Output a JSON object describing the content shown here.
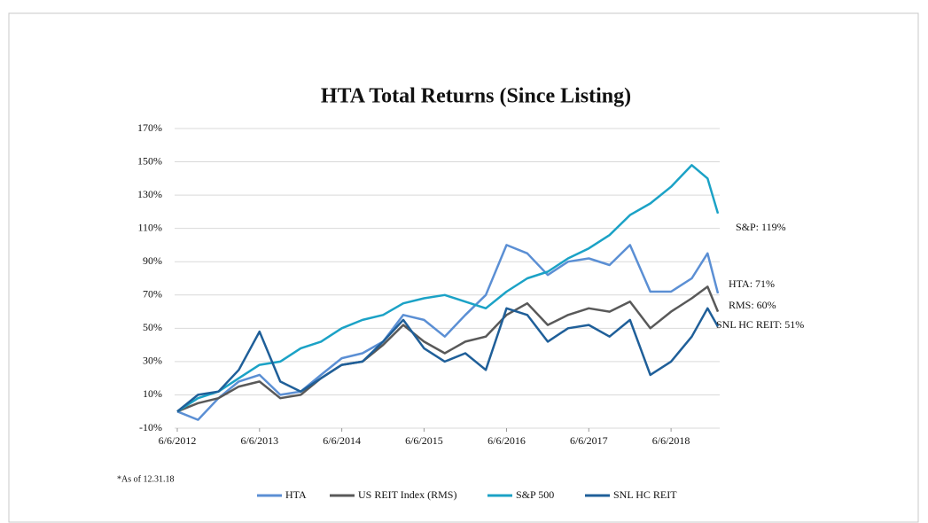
{
  "chart_data": {
    "type": "line",
    "title": "HTA Total Returns (Since Listing)",
    "footnote": "*As of 12.31.18",
    "annotations": [
      "S&P: 119%",
      "HTA: 71%",
      "RMS: 60%",
      "SNL HC REIT: 51%"
    ],
    "x": [
      "2012-06-06",
      "2012-09-06",
      "2012-12-06",
      "2013-03-06",
      "2013-06-06",
      "2013-09-06",
      "2013-12-06",
      "2014-03-06",
      "2014-06-06",
      "2014-09-06",
      "2014-12-06",
      "2015-03-06",
      "2015-06-06",
      "2015-09-06",
      "2015-12-06",
      "2016-03-06",
      "2016-06-06",
      "2016-09-06",
      "2016-12-06",
      "2017-03-06",
      "2017-06-06",
      "2017-09-06",
      "2017-12-06",
      "2018-03-06",
      "2018-06-06",
      "2018-09-06",
      "2018-11-15",
      "2018-12-31"
    ],
    "series": [
      {
        "name": "HTA",
        "color": "#5b8fd4",
        "values": [
          0,
          -5,
          8,
          18,
          22,
          10,
          12,
          22,
          32,
          35,
          42,
          58,
          55,
          45,
          58,
          70,
          100,
          95,
          82,
          90,
          92,
          88,
          100,
          72,
          72,
          80,
          95,
          71
        ]
      },
      {
        "name": "US REIT Index (RMS)",
        "color": "#595959",
        "values": [
          0,
          5,
          8,
          15,
          18,
          8,
          10,
          20,
          28,
          30,
          40,
          52,
          42,
          35,
          42,
          45,
          58,
          65,
          52,
          58,
          62,
          60,
          66,
          50,
          60,
          68,
          75,
          60
        ]
      },
      {
        "name": "S&P 500",
        "color": "#1ba2c6",
        "values": [
          0,
          8,
          12,
          20,
          28,
          30,
          38,
          42,
          50,
          55,
          58,
          65,
          68,
          70,
          66,
          62,
          72,
          80,
          84,
          92,
          98,
          106,
          118,
          125,
          135,
          148,
          140,
          119
        ]
      },
      {
        "name": "SNL HC REIT",
        "color": "#1f5f99",
        "values": [
          0,
          10,
          12,
          25,
          48,
          18,
          12,
          20,
          28,
          30,
          42,
          55,
          38,
          30,
          35,
          25,
          62,
          58,
          42,
          50,
          52,
          45,
          55,
          22,
          30,
          45,
          62,
          51
        ]
      }
    ],
    "xlim": [
      "2012-06-06",
      "2018-12-31"
    ],
    "xticks": [
      {
        "value": "2012-06-06",
        "label": "6/6/2012"
      },
      {
        "value": "2013-06-06",
        "label": "6/6/2013"
      },
      {
        "value": "2014-06-06",
        "label": "6/6/2014"
      },
      {
        "value": "2015-06-06",
        "label": "6/6/2015"
      },
      {
        "value": "2016-06-06",
        "label": "6/6/2016"
      },
      {
        "value": "2017-06-06",
        "label": "6/6/2017"
      },
      {
        "value": "2018-06-06",
        "label": "6/6/2018"
      }
    ],
    "ylim": [
      -10,
      170
    ],
    "yticks": [
      {
        "value": -10,
        "label": "-10%"
      },
      {
        "value": 10,
        "label": "10%"
      },
      {
        "value": 30,
        "label": "30%"
      },
      {
        "value": 50,
        "label": "50%"
      },
      {
        "value": 70,
        "label": "70%"
      },
      {
        "value": 90,
        "label": "90%"
      },
      {
        "value": 110,
        "label": "110%"
      },
      {
        "value": 130,
        "label": "130%"
      },
      {
        "value": 150,
        "label": "150%"
      },
      {
        "value": 170,
        "label": "170%"
      }
    ],
    "grid": true
  }
}
